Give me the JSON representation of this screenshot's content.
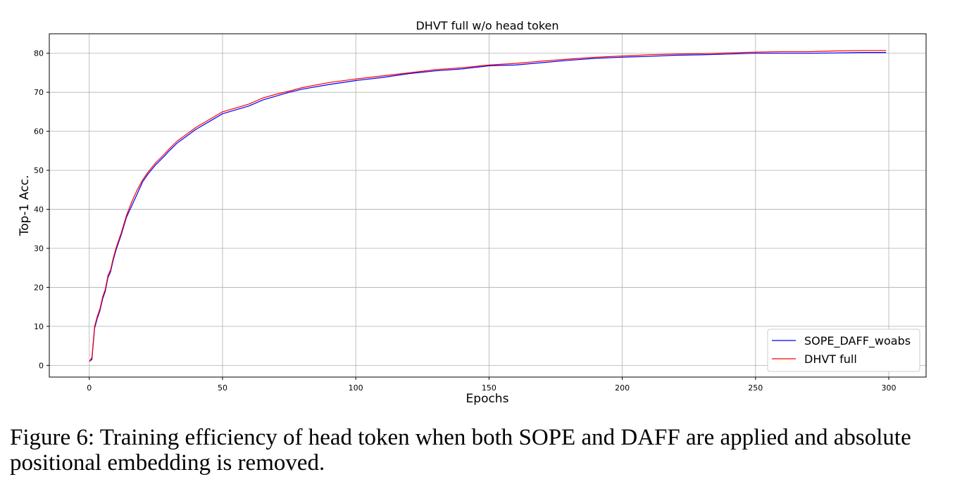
{
  "chart_data": {
    "type": "line",
    "title": "DHVT full w/o head token",
    "xlabel": "Epochs",
    "ylabel": "Top-1 Acc.",
    "xlim": [
      -15,
      314
    ],
    "ylim": [
      -3,
      85
    ],
    "xticks": [
      0,
      50,
      100,
      150,
      200,
      250,
      300
    ],
    "yticks": [
      0,
      10,
      20,
      30,
      40,
      50,
      60,
      70,
      80
    ],
    "grid": true,
    "legend_position": "lower-right",
    "series": [
      {
        "name": "SOPE_DAFF_woabs",
        "color": "#0000ff",
        "x": [
          0,
          1,
          2,
          3,
          4,
          5,
          6,
          7,
          8,
          9,
          10,
          12,
          14,
          16,
          18,
          20,
          22,
          25,
          28,
          30,
          33,
          36,
          40,
          45,
          50,
          55,
          60,
          65,
          70,
          75,
          80,
          90,
          100,
          110,
          120,
          130,
          140,
          150,
          160,
          170,
          180,
          190,
          200,
          210,
          220,
          230,
          240,
          250,
          260,
          270,
          280,
          290,
          299
        ],
        "y": [
          1,
          1.5,
          9.5,
          12,
          14,
          17,
          19,
          22.5,
          24,
          27,
          29.5,
          33.5,
          38,
          41,
          44,
          47,
          49,
          51.5,
          53.5,
          55,
          57,
          58.5,
          60.5,
          62.5,
          64.5,
          65.5,
          66.5,
          68,
          69,
          70,
          70.8,
          72,
          73,
          73.8,
          74.8,
          75.5,
          76,
          76.8,
          77,
          77.6,
          78.2,
          78.7,
          79,
          79.2,
          79.5,
          79.6,
          79.8,
          80,
          80,
          80,
          80.1,
          80.2,
          80.2
        ]
      },
      {
        "name": "DHVT full",
        "color": "#ff0000",
        "x": [
          0,
          1,
          2,
          3,
          4,
          5,
          6,
          7,
          8,
          9,
          10,
          12,
          14,
          16,
          18,
          20,
          22,
          25,
          28,
          30,
          33,
          36,
          40,
          45,
          50,
          55,
          60,
          65,
          70,
          75,
          80,
          90,
          100,
          110,
          120,
          130,
          140,
          150,
          160,
          170,
          180,
          190,
          200,
          210,
          220,
          230,
          240,
          250,
          260,
          270,
          280,
          290,
          299
        ],
        "y": [
          1,
          2,
          10,
          12.5,
          14.5,
          17.5,
          19.5,
          23,
          24.5,
          27.5,
          30,
          34,
          38.5,
          42,
          45,
          47.5,
          49.5,
          52,
          54,
          55.5,
          57.5,
          59,
          61,
          63,
          65,
          66,
          67,
          68.5,
          69.5,
          70.3,
          71.2,
          72.5,
          73.4,
          74.2,
          75,
          75.8,
          76.3,
          77,
          77.4,
          78,
          78.5,
          79,
          79.3,
          79.6,
          79.8,
          79.9,
          80.1,
          80.3,
          80.4,
          80.4,
          80.6,
          80.7,
          80.7
        ]
      }
    ]
  },
  "caption": {
    "text": "Figure 6: Training efficiency of head token when both SOPE and DAFF are applied and absolute positional embedding is removed."
  }
}
